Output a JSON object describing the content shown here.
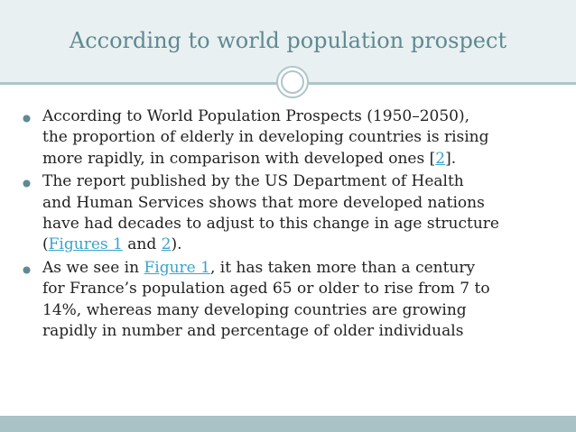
{
  "slide": {
    "title": "According to world population prospect",
    "colors": {
      "title_band": "#e9f0f1",
      "title_text": "#5e8a91",
      "accent_line": "#aec6ca",
      "footer_band": "#a9c2c6",
      "link": "#3aa3c9",
      "bullet_marker": "#5e8a91"
    },
    "bullets": [
      {
        "l1": "According to World Population Prospects (1950–2050),",
        "l2": "the proportion of elderly in developing countries is rising",
        "l3_before": "more rapidly, in comparison with developed ones [",
        "l3_link": "2",
        "l3_after": "]."
      },
      {
        "l1": "The report published by the US Department of Health",
        "l2": "and Human Services shows that more developed nations",
        "l3": "have had decades to adjust to this change in age structure",
        "l4_open": "(",
        "l4_link1": "Figures 1",
        "l4_mid": " and ",
        "l4_link2": "2",
        "l4_close": ")."
      },
      {
        "l1_before": "As we see in ",
        "l1_link": "Figure 1",
        "l1_after": ", it has taken more than a century",
        "l2": "for France’s population aged 65 or older to rise from 7 to",
        "l3": "14%, whereas many developing countries are growing",
        "l4": "rapidly in number and percentage of older individuals"
      }
    ]
  }
}
